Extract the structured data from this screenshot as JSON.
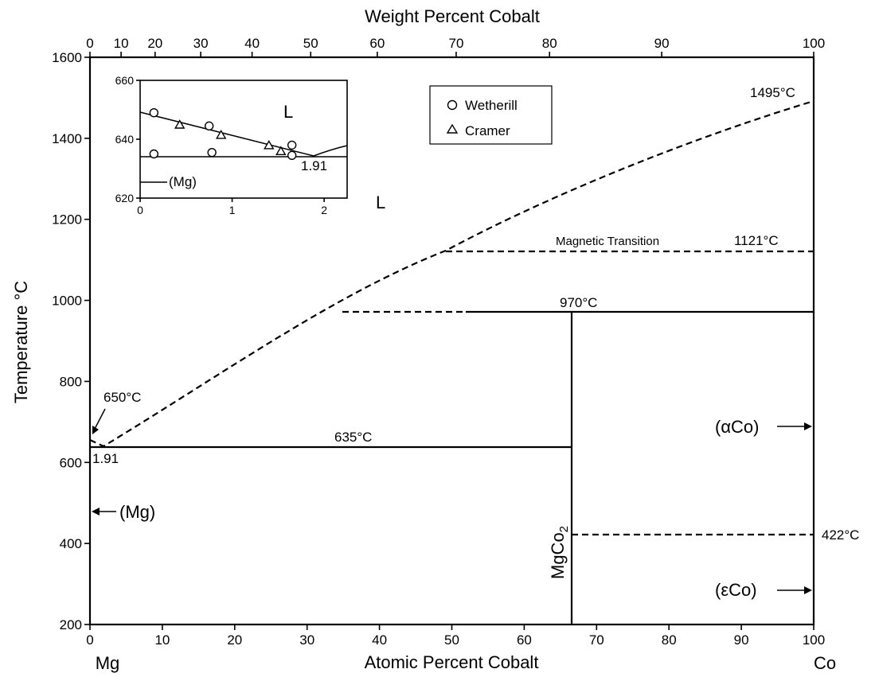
{
  "title": "Weight Percent Cobalt",
  "x_axis_label": "Atomic Percent Cobalt",
  "y_axis_label": "Temperature °C",
  "element_left": "Mg",
  "element_right": "Co",
  "y_ticks": [
    200,
    400,
    600,
    800,
    1000,
    1200,
    1400,
    1600
  ],
  "x_ticks": [
    0,
    10,
    20,
    30,
    40,
    50,
    60,
    70,
    80,
    90,
    100
  ],
  "wt_ticks": [
    0,
    10,
    20,
    30,
    40,
    50,
    60,
    70,
    80,
    90,
    100
  ],
  "wt_tick_at": [
    0,
    4.3,
    9.0,
    15.3,
    22.4,
    30.5,
    39.7,
    50.6,
    63.5,
    79.0,
    100
  ],
  "labels": {
    "liquid": "L",
    "t_1495": "1495°C",
    "t_1121": "1121°C",
    "magnetic": "Magnetic Transition",
    "t_970": "970°C",
    "t_650": "650°C",
    "t_635": "635°C",
    "eutectic": "1.91",
    "t_422": "422°C",
    "alpha_co": "(αCo)",
    "eps_co": "(εCo)",
    "mg_phase": "(Mg)",
    "compound": "MgCo",
    "compound_sub": "2"
  },
  "legend": {
    "wetherill": "Wetherill",
    "cramer": "Cramer"
  },
  "inset": {
    "label_liquid": "L",
    "label_mg": "(Mg)",
    "label_eutectic": "1.91",
    "x_ticks": [
      0,
      1,
      2
    ],
    "y_ticks": [
      620,
      640,
      660
    ],
    "x_range": [
      0,
      2.25
    ],
    "y_range": [
      620,
      660
    ],
    "wetherill_points": [
      [
        0.15,
        649
      ],
      [
        0.75,
        644.5
      ],
      [
        1.65,
        638
      ],
      [
        0.15,
        635
      ],
      [
        0.78,
        635.5
      ],
      [
        1.65,
        634.5
      ]
    ],
    "cramer_points": [
      [
        0.43,
        645
      ],
      [
        0.88,
        641.5
      ],
      [
        1.4,
        638
      ],
      [
        1.53,
        636
      ]
    ]
  },
  "chart_data": {
    "type": "line",
    "title": "",
    "xlabel": "Atomic Percent Cobalt",
    "ylabel": "Temperature °C",
    "x2label": "Weight Percent Cobalt",
    "xlim": [
      0,
      100
    ],
    "ylim": [
      200,
      1600
    ],
    "series": [
      {
        "name": "",
        "style": "dashed",
        "x": [
          0,
          1.91,
          10,
          20,
          30,
          35,
          40,
          49,
          60,
          70,
          80,
          90,
          100
        ],
        "y": [
          650,
          635,
          760,
          880,
          1000,
          1060,
          1110,
          1190,
          1280,
          1350,
          1410,
          1460,
          1495
        ]
      }
    ],
    "isotherms": [
      {
        "x": [
          0,
          66.7
        ],
        "y": 635,
        "style": "solid"
      },
      {
        "x": [
          35,
          100
        ],
        "y": 970,
        "style": "dashed-then-solid"
      },
      {
        "x": [
          49,
          100
        ],
        "y": 1121,
        "style": "dashed"
      },
      {
        "x": [
          66.7,
          100
        ],
        "y": 422,
        "style": "dashed"
      }
    ],
    "compound_line": {
      "x": 66.7,
      "y": [
        200,
        970
      ]
    }
  }
}
